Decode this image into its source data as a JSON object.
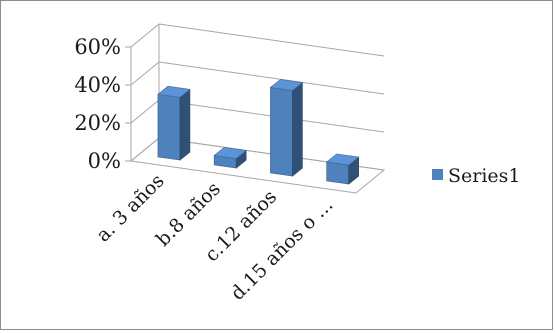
{
  "chart_data": {
    "type": "bar",
    "style": "3d-column",
    "categories": [
      "a. 3 años",
      "b.8 años",
      "c.12 años",
      "d.15 años o ..."
    ],
    "series": [
      {
        "name": "Series1",
        "values": [
          33,
          5,
          45,
          10
        ],
        "color": "#4f81bd"
      }
    ],
    "yticks": [
      "0%",
      "20%",
      "40%",
      "60%"
    ],
    "ylim": [
      0,
      60
    ],
    "grid": true,
    "legend": "right"
  }
}
